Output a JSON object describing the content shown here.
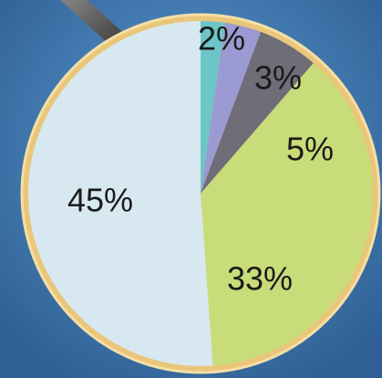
{
  "chart_data": {
    "type": "pie",
    "values": [
      2,
      3,
      5,
      33,
      45
    ],
    "value_labels": [
      "2%",
      "3%",
      "5%",
      "33%",
      "45%"
    ],
    "colors": [
      "#6cc6c8",
      "#9c9ad2",
      "#6e6d78",
      "#c9dc7a",
      "#d8e8f0"
    ]
  }
}
